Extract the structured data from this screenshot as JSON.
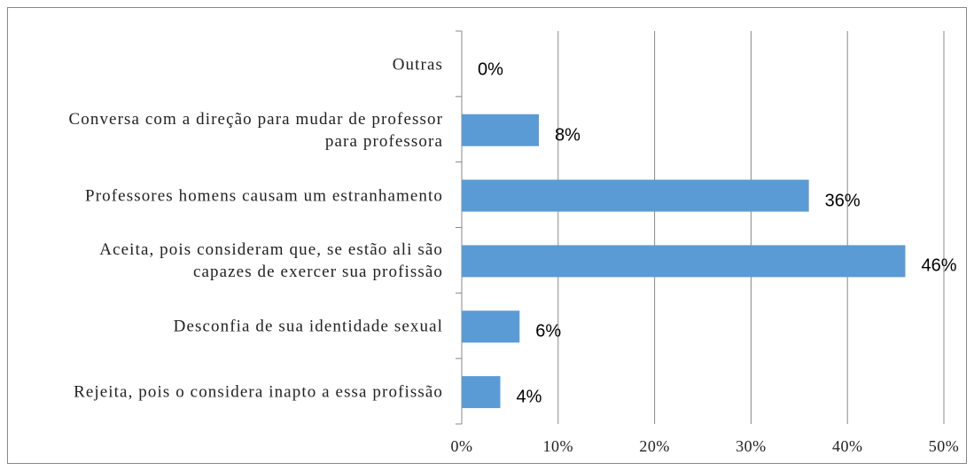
{
  "chart_data": {
    "type": "bar",
    "orientation": "horizontal",
    "categories": [
      "Outras",
      "Conversa com a direção para mudar de professor para professora",
      "Professores homens causam um estranhamento",
      "Aceita, pois consideram que, se estão ali são capazes de exercer sua profissão",
      "Desconfia de sua identidade sexual",
      "Rejeita, pois o considera inapto a essa profissão"
    ],
    "values": [
      0,
      8,
      36,
      46,
      6,
      4
    ],
    "value_labels": [
      "0%",
      "8%",
      "36%",
      "46%",
      "6%",
      "4%"
    ],
    "color": "#5b9bd5",
    "xlim": [
      0,
      50
    ],
    "xticks": [
      {
        "value": 0,
        "label": "0%"
      },
      {
        "value": 10,
        "label": "10%"
      },
      {
        "value": 20,
        "label": "20%"
      },
      {
        "value": 30,
        "label": "30%"
      },
      {
        "value": 40,
        "label": "40%"
      },
      {
        "value": 50,
        "label": "50%"
      }
    ],
    "grid": true
  }
}
